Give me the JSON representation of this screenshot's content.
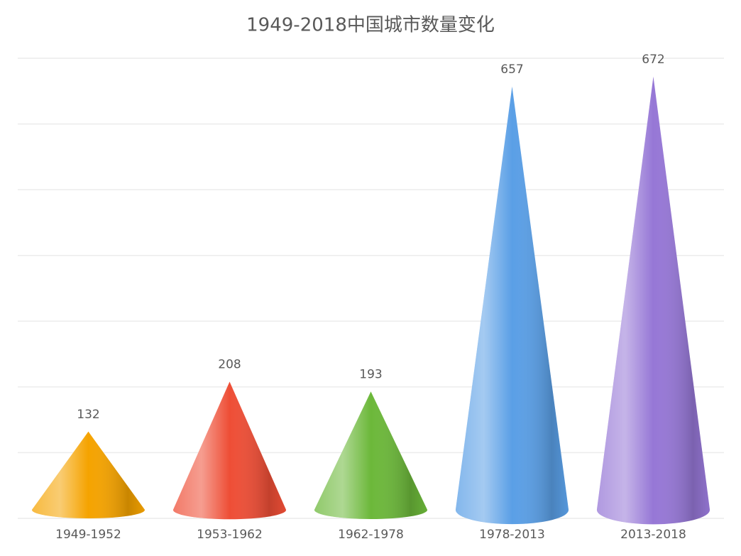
{
  "chart_data": {
    "type": "cone-bar",
    "title": "1949-2018中国城市数量变化",
    "categories": [
      "1949-1952",
      "1953-1962",
      "1962-1978",
      "1978-2013",
      "2013-2018"
    ],
    "values": [
      132,
      208,
      193,
      657,
      672
    ],
    "colors": [
      "#f5a300",
      "#ee4e36",
      "#6cb83a",
      "#5a9fe6",
      "#9677d6"
    ],
    "ylim": [
      0,
      700
    ],
    "yticks": [
      0,
      100,
      200,
      300,
      400,
      500,
      600,
      700
    ],
    "grid": true
  }
}
